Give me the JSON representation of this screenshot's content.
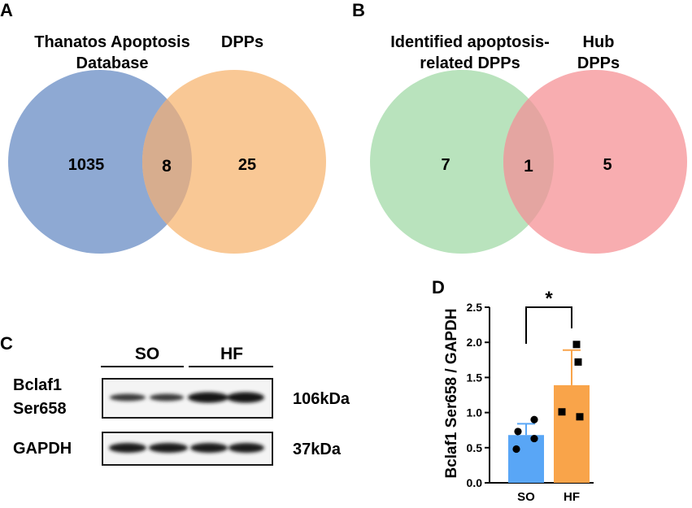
{
  "panel_a": {
    "letter": "A",
    "left_label_line1": "Thanatos Apoptosis",
    "left_label_line2": "Database",
    "right_label": "DPPs",
    "left_only": "1035",
    "overlap": "8",
    "right_only": "25",
    "left_color": "#8ea9d3",
    "right_color": "#f9c895",
    "overlap_color": "#d7ad8e"
  },
  "panel_b": {
    "letter": "B",
    "left_label_line1": "Identified apoptosis-",
    "left_label_line2": "related DPPs",
    "right_label_line1": "Hub",
    "right_label_line2": "DPPs",
    "left_only": "7",
    "overlap": "1",
    "right_only": "5",
    "left_color": "#b9e3bd",
    "right_color": "#f8adb0",
    "overlap_color": "#e4a5a1"
  },
  "panel_c": {
    "letter": "C",
    "group1": "SO",
    "group2": "HF",
    "row1_label_line1": "Bclaf1",
    "row1_label_line2": "Ser658",
    "row1_size": "106kDa",
    "row2_label": "GAPDH",
    "row2_size": "37kDa"
  },
  "panel_d": {
    "letter": "D",
    "significance": "*"
  },
  "chart_data": {
    "type": "bar",
    "categories": [
      "SO",
      "HF"
    ],
    "values": [
      0.68,
      1.39
    ],
    "errors": [
      0.16,
      0.5
    ],
    "points": [
      [
        0.9,
        0.73,
        0.63,
        0.48
      ],
      [
        1.97,
        1.72,
        1.01,
        0.94
      ]
    ],
    "colors": [
      "#59a6f6",
      "#f9a44a"
    ],
    "ylabel": "Bclaf1 Ser658 / GAPDH",
    "ylim": [
      0,
      2.5
    ],
    "yticks": [
      "0.0",
      "0.5",
      "1.0",
      "1.5",
      "2.0",
      "2.5"
    ],
    "grid": false
  }
}
